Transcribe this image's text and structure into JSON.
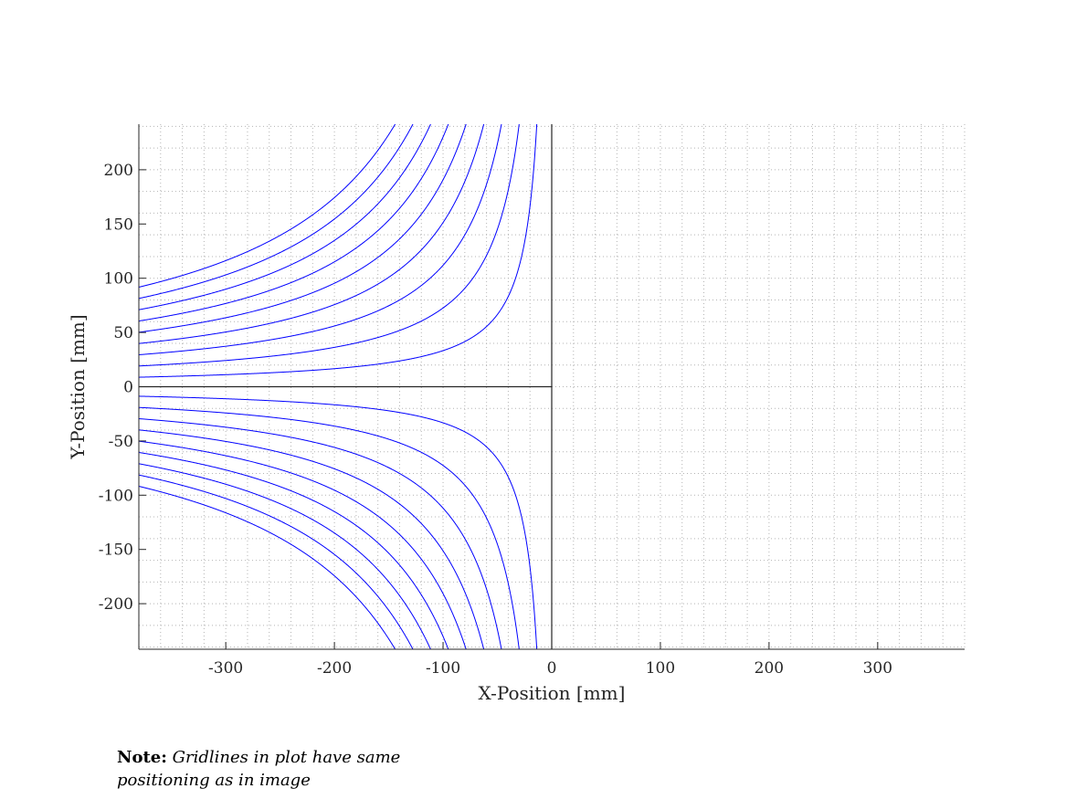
{
  "chart_data": {
    "type": "line",
    "title": "",
    "xlabel": "X-Position [mm]",
    "ylabel": "Y-Position [mm]",
    "xlim": [
      -380,
      380
    ],
    "ylim": [
      -242,
      242
    ],
    "xticks": [
      -300,
      -200,
      -100,
      0,
      100,
      200,
      300
    ],
    "yticks": [
      -200,
      -150,
      -100,
      -50,
      0,
      50,
      100,
      150,
      200
    ],
    "grid": "minor dotted, 20 per major division",
    "line_color": "#0000ff",
    "axis_line_color": "#262626",
    "function": "hyperbolas y = -c / x for x < 0",
    "hyperbola_constants_upper": [
      3328,
      7259,
      11194,
      15134,
      19077,
      23023,
      26970,
      30920,
      34869
    ],
    "hyperbola_constants_lower": [
      3328,
      7259,
      11194,
      15134,
      19077,
      23023,
      26970,
      30920,
      34869
    ],
    "series": [
      {
        "values": [
          [
            -380,
            8.8
          ],
          [
            -300,
            11.1
          ],
          [
            -200,
            16.6
          ],
          [
            -100,
            33.3
          ],
          [
            -50,
            66.6
          ],
          [
            -15,
            221.9
          ]
        ]
      },
      {
        "values": [
          [
            -380,
            19.1
          ],
          [
            -300,
            24.2
          ],
          [
            -200,
            36.3
          ],
          [
            -100,
            72.6
          ],
          [
            -50,
            145.2
          ],
          [
            -30,
            242
          ]
        ]
      },
      {
        "values": [
          [
            -380,
            29.5
          ],
          [
            -300,
            37.3
          ],
          [
            -200,
            56.0
          ],
          [
            -100,
            111.9
          ],
          [
            -60,
            186.6
          ],
          [
            -46,
            242
          ]
        ]
      },
      {
        "values": [
          [
            -380,
            39.8
          ],
          [
            -300,
            50.4
          ],
          [
            -200,
            75.7
          ],
          [
            -100,
            151.3
          ],
          [
            -63,
            242
          ]
        ]
      },
      {
        "values": [
          [
            -380,
            50.2
          ],
          [
            -300,
            63.6
          ],
          [
            -200,
            95.4
          ],
          [
            -100,
            190.8
          ],
          [
            -79,
            242
          ]
        ]
      },
      {
        "values": [
          [
            -380,
            60.6
          ],
          [
            -300,
            76.7
          ],
          [
            -200,
            115.1
          ],
          [
            -100,
            230.2
          ],
          [
            -95,
            242
          ]
        ]
      },
      {
        "values": [
          [
            -380,
            71.0
          ],
          [
            -300,
            89.9
          ],
          [
            -200,
            134.9
          ],
          [
            -111,
            242
          ]
        ]
      },
      {
        "values": [
          [
            -380,
            81.4
          ],
          [
            -300,
            103.1
          ],
          [
            -200,
            154.6
          ],
          [
            -128,
            242
          ]
        ]
      },
      {
        "values": [
          [
            -380,
            91.8
          ],
          [
            -300,
            116.2
          ],
          [
            -200,
            174.3
          ],
          [
            -144,
            242
          ]
        ]
      }
    ]
  },
  "axes": {
    "x_tick_labels": [
      "-300",
      "-200",
      "-100",
      "0",
      "100",
      "200",
      "300"
    ],
    "y_tick_labels": [
      "-200",
      "-150",
      "-100",
      "-50",
      "0",
      "50",
      "100",
      "150",
      "200"
    ]
  },
  "note": {
    "label": "Note:",
    "text_line1": "Gridlines in plot have same",
    "text_line2": "positioning as in image"
  }
}
